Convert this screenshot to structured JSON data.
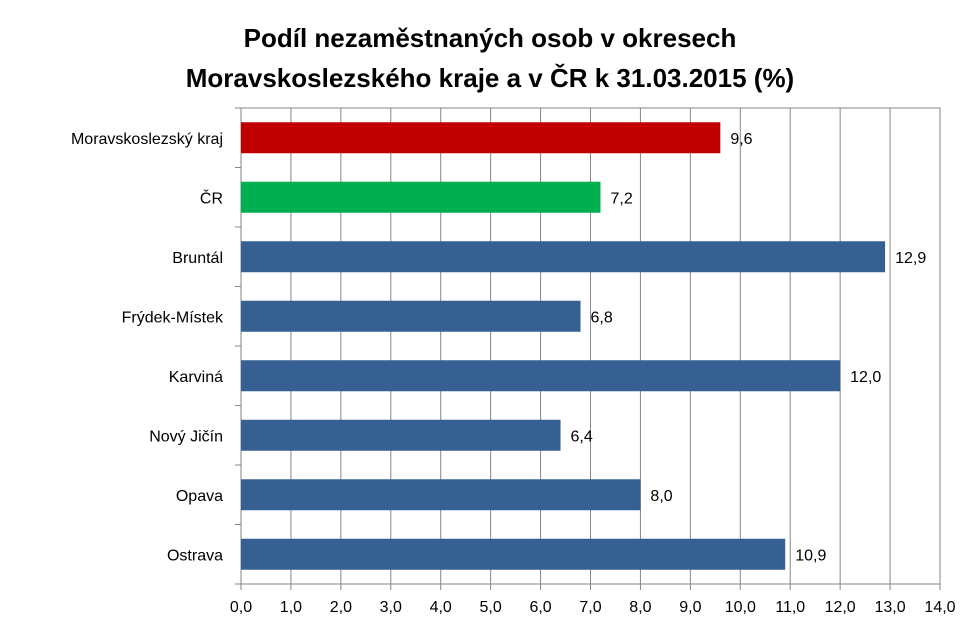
{
  "chart_data": {
    "type": "bar",
    "orientation": "horizontal",
    "title_line1": "Podíl nezaměstnaných osob v okresech",
    "title_line2": "Moravskoslezského kraje a v ČR k 31.03.2015 (%)",
    "categories": [
      "Moravskoslezský kraj",
      "ČR",
      "Bruntál",
      "Frýdek-Místek",
      "Karviná",
      "Nový Jičín",
      "Opava",
      "Ostrava"
    ],
    "values": [
      9.6,
      7.2,
      12.9,
      6.8,
      12.0,
      6.4,
      8.0,
      10.9
    ],
    "value_labels": [
      "9,6",
      "7,2",
      "12,9",
      "6,8",
      "12,0",
      "6,4",
      "8,0",
      "10,9"
    ],
    "bar_colors": [
      "#C00000",
      "#00B050",
      "#376092",
      "#376092",
      "#376092",
      "#376092",
      "#376092",
      "#376092"
    ],
    "xlim": [
      0,
      14
    ],
    "x_ticks": [
      0,
      1,
      2,
      3,
      4,
      5,
      6,
      7,
      8,
      9,
      10,
      11,
      12,
      13,
      14
    ],
    "x_tick_labels": [
      "0,0",
      "1,0",
      "2,0",
      "3,0",
      "4,0",
      "5,0",
      "6,0",
      "7,0",
      "8,0",
      "9,0",
      "10,0",
      "11,0",
      "12,0",
      "13,0",
      "14,0"
    ],
    "grid": "vertical",
    "legend": "none"
  }
}
